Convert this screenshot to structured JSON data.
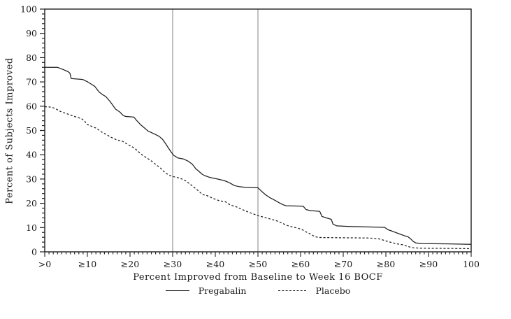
{
  "chart_data": {
    "type": "line",
    "title": "",
    "xlabel": "Percent Improved from Baseline to Week 16 BOCF",
    "ylabel": "Percent of Subjects Improved",
    "xlim": [
      0,
      100
    ],
    "ylim": [
      0,
      100
    ],
    "x_major_tick_step": 10,
    "x_minor_tick_step": 1,
    "y_major_tick_step": 10,
    "y_minor_tick_step": 2,
    "x_tick_labels": [
      ">0",
      "≥10",
      "≥20",
      "≥30",
      "≥40",
      "≥50",
      "≥60",
      "≥70",
      "≥80",
      "≥90",
      "100"
    ],
    "y_tick_labels": [
      "0",
      "10",
      "20",
      "30",
      "40",
      "50",
      "60",
      "70",
      "80",
      "90",
      "100"
    ],
    "grid": false,
    "legend_position": "bottom",
    "reference_lines_x": [
      30,
      50
    ],
    "colors": {
      "line": "#1f1f1f",
      "frame": "#1f1f1f",
      "reference": "#9e9e9e",
      "background": "#ffffff"
    },
    "series": [
      {
        "name": "Pregabalin",
        "style": "solid",
        "points": [
          [
            0,
            76
          ],
          [
            3,
            76
          ],
          [
            4.2,
            75.2
          ],
          [
            5.5,
            74.2
          ],
          [
            5.9,
            73.6
          ],
          [
            6.2,
            71.4
          ],
          [
            8.9,
            71
          ],
          [
            10,
            70.1
          ],
          [
            10.7,
            69.3
          ],
          [
            11.7,
            68.2
          ],
          [
            12.7,
            65.9
          ],
          [
            13.6,
            64.7
          ],
          [
            14.3,
            64
          ],
          [
            15.3,
            62
          ],
          [
            16,
            60.3
          ],
          [
            16.6,
            58.8
          ],
          [
            17.6,
            57.6
          ],
          [
            18.3,
            56.3
          ],
          [
            18.9,
            55.8
          ],
          [
            20.9,
            55.5
          ],
          [
            21.5,
            54.2
          ],
          [
            22.6,
            52.2
          ],
          [
            24.2,
            49.8
          ],
          [
            25.9,
            48.4
          ],
          [
            26.8,
            47.6
          ],
          [
            27.6,
            46.4
          ],
          [
            28.3,
            44.7
          ],
          [
            29,
            42.8
          ],
          [
            29.6,
            41.2
          ],
          [
            30.2,
            39.8
          ],
          [
            31.2,
            38.7
          ],
          [
            32.6,
            38.2
          ],
          [
            33.7,
            37.3
          ],
          [
            34.6,
            36.1
          ],
          [
            35.4,
            34.3
          ],
          [
            36,
            33.4
          ],
          [
            36.9,
            32
          ],
          [
            37.5,
            31.4
          ],
          [
            38.8,
            30.6
          ],
          [
            40.5,
            30
          ],
          [
            42,
            29.4
          ],
          [
            43.2,
            28.6
          ],
          [
            44.5,
            27.3
          ],
          [
            45.5,
            26.9
          ],
          [
            47,
            26.6
          ],
          [
            50,
            26.4
          ],
          [
            50.7,
            25.2
          ],
          [
            51.8,
            23.5
          ],
          [
            52.8,
            22.3
          ],
          [
            53.9,
            21.3
          ],
          [
            55,
            20.2
          ],
          [
            55.9,
            19.4
          ],
          [
            56.6,
            19
          ],
          [
            60.6,
            18.8
          ],
          [
            61.3,
            17.4
          ],
          [
            62.3,
            17
          ],
          [
            64.5,
            16.7
          ],
          [
            65,
            14.6
          ],
          [
            66,
            14
          ],
          [
            67.2,
            13.4
          ],
          [
            67.6,
            11.4
          ],
          [
            68.5,
            10.7
          ],
          [
            71,
            10.5
          ],
          [
            75,
            10.3
          ],
          [
            79.7,
            10.1
          ],
          [
            80.5,
            9.1
          ],
          [
            81.7,
            8.4
          ],
          [
            83,
            7.5
          ],
          [
            84.3,
            6.7
          ],
          [
            85.2,
            6.2
          ],
          [
            85.9,
            5.2
          ],
          [
            86.4,
            4.3
          ],
          [
            87,
            3.7
          ],
          [
            88.5,
            3.4
          ],
          [
            93,
            3.3
          ],
          [
            100,
            3.1
          ]
        ]
      },
      {
        "name": "Placebo",
        "style": "dashed",
        "points": [
          [
            0,
            59.8
          ],
          [
            1.6,
            59.6
          ],
          [
            2.6,
            58.9
          ],
          [
            3.7,
            57.8
          ],
          [
            5.2,
            56.9
          ],
          [
            6.9,
            55.8
          ],
          [
            8.6,
            54.9
          ],
          [
            9.4,
            53.9
          ],
          [
            9.7,
            52.7
          ],
          [
            11,
            51.7
          ],
          [
            12,
            51
          ],
          [
            13.4,
            49.3
          ],
          [
            14.9,
            47.9
          ],
          [
            15.2,
            47.5
          ],
          [
            16.8,
            46.2
          ],
          [
            18.3,
            45.5
          ],
          [
            19.5,
            44.2
          ],
          [
            21,
            42.8
          ],
          [
            22.5,
            40.4
          ],
          [
            23.3,
            39.4
          ],
          [
            24.2,
            38.4
          ],
          [
            25.2,
            37.2
          ],
          [
            26.2,
            35.8
          ],
          [
            27.2,
            34.4
          ],
          [
            28,
            33
          ],
          [
            28.7,
            32.1
          ],
          [
            29.4,
            31.4
          ],
          [
            30.1,
            31
          ],
          [
            31.8,
            30.3
          ],
          [
            33,
            29.3
          ],
          [
            34,
            28
          ],
          [
            34.8,
            26.9
          ],
          [
            36,
            25.2
          ],
          [
            37,
            23.6
          ],
          [
            38,
            23.2
          ],
          [
            39.5,
            22
          ],
          [
            41,
            21
          ],
          [
            42.3,
            20.7
          ],
          [
            43.5,
            19.3
          ],
          [
            45,
            18.5
          ],
          [
            46.5,
            17.3
          ],
          [
            48,
            16.2
          ],
          [
            49,
            15.6
          ],
          [
            50,
            14.9
          ],
          [
            51.5,
            14.2
          ],
          [
            53,
            13.5
          ],
          [
            54.5,
            12.7
          ],
          [
            55.8,
            11.7
          ],
          [
            56.8,
            10.9
          ],
          [
            58,
            10.3
          ],
          [
            59.3,
            9.8
          ],
          [
            60.3,
            9.2
          ],
          [
            61.2,
            8.3
          ],
          [
            62,
            7.6
          ],
          [
            62.8,
            6.8
          ],
          [
            63.5,
            6.2
          ],
          [
            64.3,
            5.9
          ],
          [
            70,
            5.8
          ],
          [
            76,
            5.7
          ],
          [
            78.5,
            5.3
          ],
          [
            79.8,
            4.6
          ],
          [
            81,
            4
          ],
          [
            82.5,
            3.3
          ],
          [
            84,
            2.9
          ],
          [
            84.9,
            2.4
          ],
          [
            85.6,
            2
          ],
          [
            86.4,
            1.7
          ],
          [
            88,
            1.5
          ],
          [
            91,
            1.45
          ],
          [
            95,
            1.4
          ],
          [
            100,
            1.3
          ]
        ]
      }
    ]
  }
}
